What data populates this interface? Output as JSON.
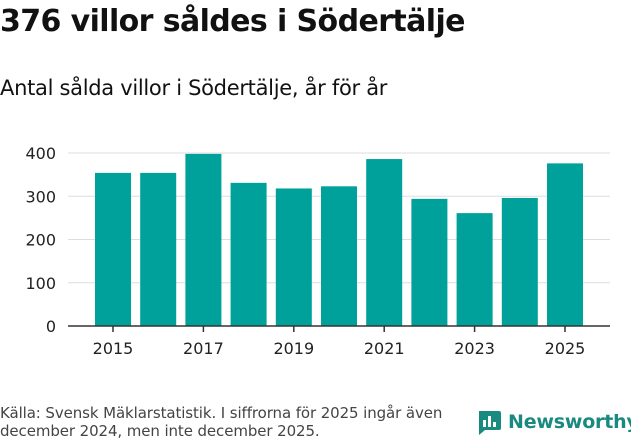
{
  "title": "376 villor såldes i Södertälje",
  "subtitle": "Antal sålda villor i Södertälje, år för år",
  "footer": {
    "source": "Källa: Svensk Mäklarstatistik. I siffrorna för 2025 ingår även december 2024, men inte december 2025."
  },
  "logo": {
    "text": "Newsworthy"
  },
  "colors": {
    "bar": "#00a19a",
    "grid": "#dddddd",
    "axis": "#333333",
    "logo": "#1a8a80"
  },
  "chart_data": {
    "type": "bar",
    "title": "Antal sålda villor i Södertälje, år för år",
    "xlabel": "",
    "ylabel": "",
    "categories": [
      "2015",
      "2016",
      "2017",
      "2018",
      "2019",
      "2020",
      "2021",
      "2022",
      "2023",
      "2024",
      "2025"
    ],
    "values": [
      354,
      354,
      398,
      331,
      318,
      323,
      386,
      294,
      261,
      296,
      376
    ],
    "x_tick_labels": [
      "2015",
      "2017",
      "2019",
      "2021",
      "2023",
      "2025"
    ],
    "y_ticks": [
      0,
      100,
      200,
      300,
      400
    ],
    "ylim": [
      0,
      400
    ],
    "grid": true
  }
}
